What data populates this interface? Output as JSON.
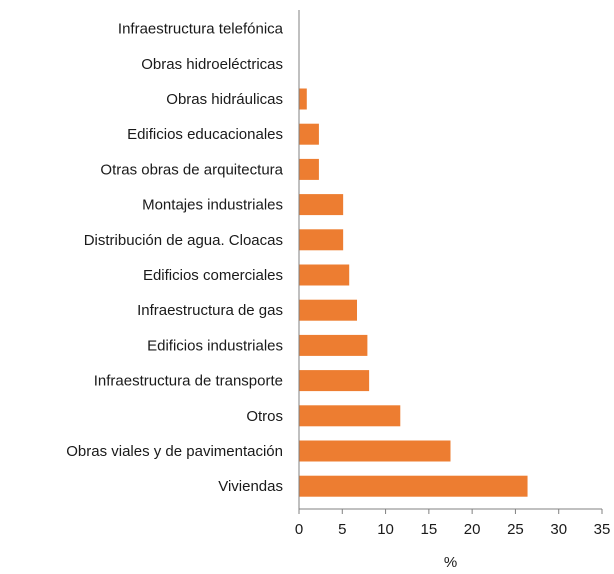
{
  "chart_data": {
    "type": "bar",
    "orientation": "horizontal",
    "categories": [
      "Infraestructura telefónica",
      "Obras hidroeléctricas",
      "Obras hidráulicas",
      "Edificios educacionales",
      "Otras obras de arquitectura",
      "Montajes industriales",
      "Distribución de agua. Cloacas",
      "Edificios comerciales",
      "Infraestructura de gas",
      "Edificios industriales",
      "Infraestructura de transporte",
      "Otros",
      "Obras viales y de pavimentación",
      "Viviendas"
    ],
    "values": [
      0,
      0,
      0.9,
      2.3,
      2.3,
      5.1,
      5.1,
      5.8,
      6.7,
      7.9,
      8.1,
      11.7,
      17.5,
      26.4
    ],
    "title": "",
    "xlabel": "%",
    "ylabel": "",
    "xlim": [
      0,
      35
    ],
    "xticks": [
      0,
      5,
      10,
      15,
      20,
      25,
      30,
      35
    ],
    "grid": false,
    "legend": "none",
    "bar_color": "#ED7D31",
    "axis_color": "#808080"
  }
}
